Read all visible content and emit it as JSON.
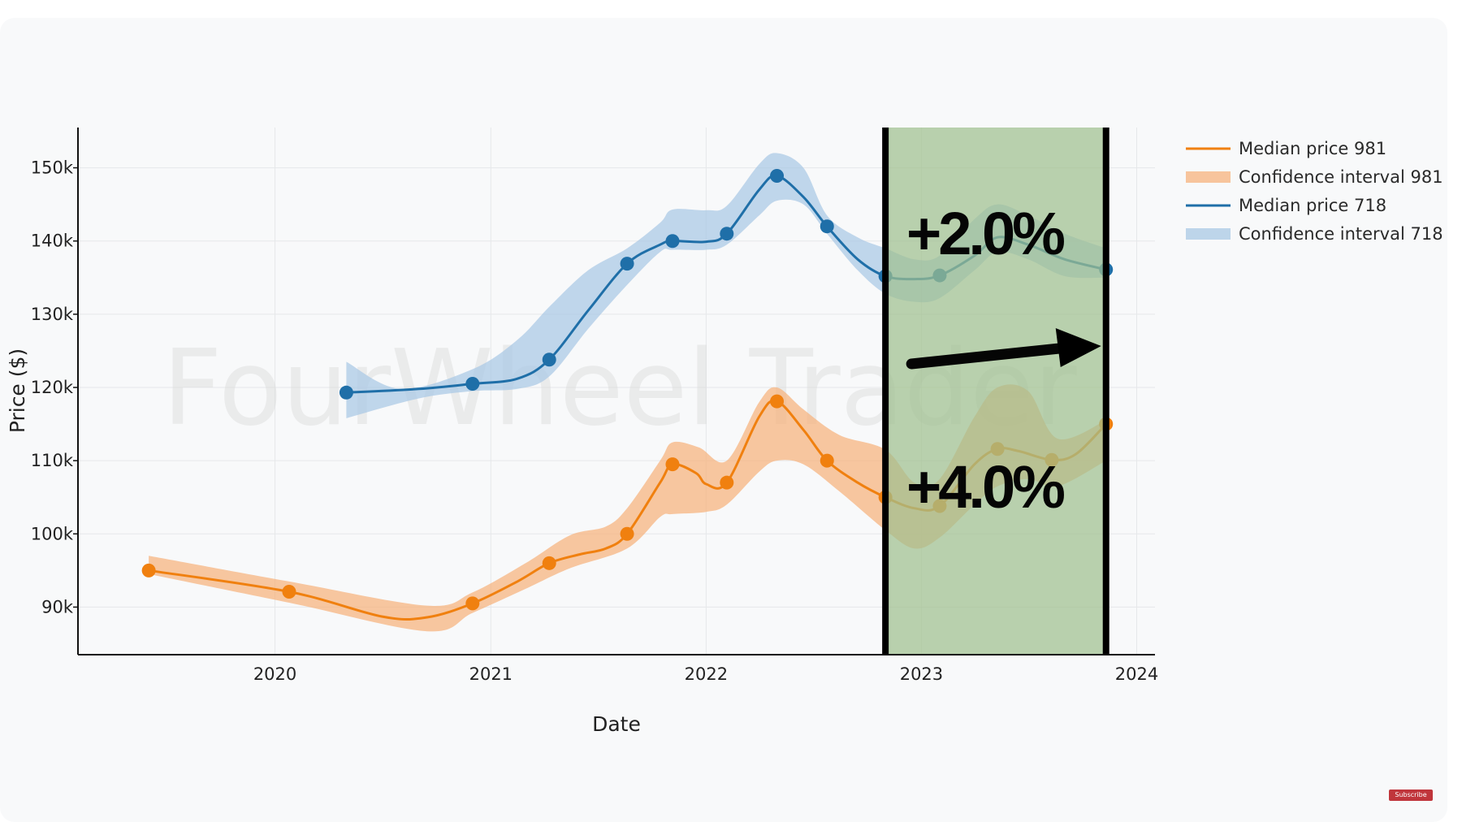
{
  "chart_data": {
    "type": "line",
    "xlabel": "Date",
    "ylabel": "Price ($)",
    "xlim": [
      "2019-02-01",
      "2024-02-01"
    ],
    "ylim": [
      83500,
      155500
    ],
    "x_ticks": [
      {
        "date": "2020-01-01",
        "label": "2020"
      },
      {
        "date": "2021-01-01",
        "label": "2021"
      },
      {
        "date": "2022-01-01",
        "label": "2022"
      },
      {
        "date": "2023-01-01",
        "label": "2023"
      },
      {
        "date": "2024-01-01",
        "label": "2024"
      }
    ],
    "y_ticks": [
      {
        "value": 90000,
        "label": "90k"
      },
      {
        "value": 100000,
        "label": "100k"
      },
      {
        "value": 110000,
        "label": "110k"
      },
      {
        "value": 120000,
        "label": "120k"
      },
      {
        "value": 130000,
        "label": "130k"
      },
      {
        "value": 140000,
        "label": "140k"
      },
      {
        "value": 150000,
        "label": "150k"
      }
    ],
    "grid": true,
    "legend_position": "right",
    "series": [
      {
        "name": "Median price 981",
        "legend_band": "Confidence interval 981",
        "color": "#f0800f",
        "band_color": "#f7b27c",
        "line": [
          {
            "x": "2019-06-01",
            "y": 95000
          },
          {
            "x": "2020-01-25",
            "y": 92100
          },
          {
            "x": "2020-07-01",
            "y": 88700
          },
          {
            "x": "2020-09-15",
            "y": 88600
          },
          {
            "x": "2020-12-01",
            "y": 90500
          },
          {
            "x": "2021-02-15",
            "y": 93500
          },
          {
            "x": "2021-04-10",
            "y": 96000
          },
          {
            "x": "2021-06-01",
            "y": 97200
          },
          {
            "x": "2021-07-15",
            "y": 98000
          },
          {
            "x": "2021-08-20",
            "y": 100000
          },
          {
            "x": "2021-10-15",
            "y": 107000
          },
          {
            "x": "2021-11-05",
            "y": 109500
          },
          {
            "x": "2021-12-15",
            "y": 108300
          },
          {
            "x": "2022-01-01",
            "y": 106800
          },
          {
            "x": "2022-02-05",
            "y": 107000
          },
          {
            "x": "2022-04-01",
            "y": 116000
          },
          {
            "x": "2022-05-01",
            "y": 118100
          },
          {
            "x": "2022-06-15",
            "y": 114200
          },
          {
            "x": "2022-07-25",
            "y": 110000
          },
          {
            "x": "2022-09-15",
            "y": 107000
          },
          {
            "x": "2022-11-01",
            "y": 105000
          },
          {
            "x": "2022-12-20",
            "y": 103500
          },
          {
            "x": "2023-02-01",
            "y": 103800
          },
          {
            "x": "2023-04-01",
            "y": 109500
          },
          {
            "x": "2023-05-10",
            "y": 111600
          },
          {
            "x": "2023-06-15",
            "y": 111300
          },
          {
            "x": "2023-08-10",
            "y": 110100
          },
          {
            "x": "2023-09-20",
            "y": 110900
          },
          {
            "x": "2023-11-10",
            "y": 115000
          }
        ],
        "markers": [
          {
            "x": "2019-06-01",
            "y": 95000
          },
          {
            "x": "2020-01-25",
            "y": 92100
          },
          {
            "x": "2020-12-01",
            "y": 90500
          },
          {
            "x": "2021-04-10",
            "y": 96000
          },
          {
            "x": "2021-08-20",
            "y": 100000
          },
          {
            "x": "2021-11-05",
            "y": 109500
          },
          {
            "x": "2022-02-05",
            "y": 107000
          },
          {
            "x": "2022-05-01",
            "y": 118100
          },
          {
            "x": "2022-07-25",
            "y": 110000
          },
          {
            "x": "2022-11-01",
            "y": 105000
          },
          {
            "x": "2023-02-01",
            "y": 103800
          },
          {
            "x": "2023-05-10",
            "y": 111600
          },
          {
            "x": "2023-08-10",
            "y": 110100
          },
          {
            "x": "2023-11-10",
            "y": 115000
          }
        ],
        "band_upper": [
          {
            "x": "2019-06-01",
            "y": 97000
          },
          {
            "x": "2020-01-25",
            "y": 93500
          },
          {
            "x": "2020-09-15",
            "y": 90200
          },
          {
            "x": "2020-12-01",
            "y": 92000
          },
          {
            "x": "2021-03-01",
            "y": 96000
          },
          {
            "x": "2021-05-15",
            "y": 99800
          },
          {
            "x": "2021-07-15",
            "y": 101000
          },
          {
            "x": "2021-08-20",
            "y": 103500
          },
          {
            "x": "2021-10-15",
            "y": 110000
          },
          {
            "x": "2021-11-05",
            "y": 112500
          },
          {
            "x": "2021-12-20",
            "y": 111800
          },
          {
            "x": "2022-02-05",
            "y": 110000
          },
          {
            "x": "2022-04-01",
            "y": 118000
          },
          {
            "x": "2022-05-01",
            "y": 120000
          },
          {
            "x": "2022-06-15",
            "y": 117000
          },
          {
            "x": "2022-08-15",
            "y": 113500
          },
          {
            "x": "2022-11-01",
            "y": 111500
          },
          {
            "x": "2022-12-20",
            "y": 107000
          },
          {
            "x": "2023-02-01",
            "y": 107500
          },
          {
            "x": "2023-04-01",
            "y": 116000
          },
          {
            "x": "2023-05-10",
            "y": 120000
          },
          {
            "x": "2023-07-01",
            "y": 119500
          },
          {
            "x": "2023-08-20",
            "y": 113000
          },
          {
            "x": "2023-11-10",
            "y": 115500
          }
        ],
        "band_lower": [
          {
            "x": "2019-06-01",
            "y": 94500
          },
          {
            "x": "2020-01-25",
            "y": 90600
          },
          {
            "x": "2020-09-15",
            "y": 86700
          },
          {
            "x": "2020-12-01",
            "y": 89200
          },
          {
            "x": "2021-03-01",
            "y": 92500
          },
          {
            "x": "2021-05-15",
            "y": 95300
          },
          {
            "x": "2021-08-20",
            "y": 98000
          },
          {
            "x": "2021-10-15",
            "y": 102300
          },
          {
            "x": "2021-11-05",
            "y": 102700
          },
          {
            "x": "2022-01-01",
            "y": 103000
          },
          {
            "x": "2022-02-05",
            "y": 104000
          },
          {
            "x": "2022-04-01",
            "y": 108500
          },
          {
            "x": "2022-05-01",
            "y": 110000
          },
          {
            "x": "2022-06-15",
            "y": 109500
          },
          {
            "x": "2022-08-15",
            "y": 105800
          },
          {
            "x": "2022-11-01",
            "y": 100500
          },
          {
            "x": "2022-12-20",
            "y": 98000
          },
          {
            "x": "2023-02-01",
            "y": 99500
          },
          {
            "x": "2023-04-01",
            "y": 104000
          },
          {
            "x": "2023-05-10",
            "y": 106500
          },
          {
            "x": "2023-07-01",
            "y": 107500
          },
          {
            "x": "2023-08-20",
            "y": 106500
          },
          {
            "x": "2023-11-10",
            "y": 110000
          }
        ]
      },
      {
        "name": "Median price 718",
        "legend_band": "Confidence interval 718",
        "color": "#1f6fa8",
        "band_color": "#a9c8e4",
        "line": [
          {
            "x": "2020-05-01",
            "y": 119300
          },
          {
            "x": "2020-09-01",
            "y": 119800
          },
          {
            "x": "2020-12-01",
            "y": 120500
          },
          {
            "x": "2021-02-15",
            "y": 121200
          },
          {
            "x": "2021-04-10",
            "y": 123800
          },
          {
            "x": "2021-06-15",
            "y": 130500
          },
          {
            "x": "2021-08-20",
            "y": 136900
          },
          {
            "x": "2021-10-15",
            "y": 139500
          },
          {
            "x": "2021-11-05",
            "y": 140000
          },
          {
            "x": "2022-01-01",
            "y": 139900
          },
          {
            "x": "2022-02-05",
            "y": 141000
          },
          {
            "x": "2022-04-01",
            "y": 147000
          },
          {
            "x": "2022-05-01",
            "y": 148900
          },
          {
            "x": "2022-06-15",
            "y": 146000
          },
          {
            "x": "2022-07-25",
            "y": 142000
          },
          {
            "x": "2022-09-15",
            "y": 137500
          },
          {
            "x": "2022-11-01",
            "y": 135200
          },
          {
            "x": "2022-12-20",
            "y": 134800
          },
          {
            "x": "2023-02-01",
            "y": 135300
          },
          {
            "x": "2023-04-01",
            "y": 138000
          },
          {
            "x": "2023-05-10",
            "y": 140500
          },
          {
            "x": "2023-07-01",
            "y": 139500
          },
          {
            "x": "2023-09-01",
            "y": 137500
          },
          {
            "x": "2023-11-10",
            "y": 136100
          }
        ],
        "markers": [
          {
            "x": "2020-05-01",
            "y": 119300
          },
          {
            "x": "2020-12-01",
            "y": 120500
          },
          {
            "x": "2021-04-10",
            "y": 123800
          },
          {
            "x": "2021-08-20",
            "y": 136900
          },
          {
            "x": "2021-11-05",
            "y": 140000
          },
          {
            "x": "2022-02-05",
            "y": 141000
          },
          {
            "x": "2022-05-01",
            "y": 148900
          },
          {
            "x": "2022-07-25",
            "y": 142000
          },
          {
            "x": "2022-11-01",
            "y": 135200
          },
          {
            "x": "2023-02-01",
            "y": 135300
          },
          {
            "x": "2023-11-10",
            "y": 136100
          }
        ],
        "band_upper": [
          {
            "x": "2020-05-01",
            "y": 123500
          },
          {
            "x": "2020-08-01",
            "y": 119800
          },
          {
            "x": "2020-12-01",
            "y": 122500
          },
          {
            "x": "2021-02-15",
            "y": 126500
          },
          {
            "x": "2021-04-10",
            "y": 131000
          },
          {
            "x": "2021-06-15",
            "y": 136000
          },
          {
            "x": "2021-08-20",
            "y": 139000
          },
          {
            "x": "2021-10-15",
            "y": 142500
          },
          {
            "x": "2021-11-05",
            "y": 144300
          },
          {
            "x": "2022-01-01",
            "y": 144200
          },
          {
            "x": "2022-02-05",
            "y": 144800
          },
          {
            "x": "2022-04-01",
            "y": 150500
          },
          {
            "x": "2022-05-01",
            "y": 152000
          },
          {
            "x": "2022-06-15",
            "y": 150000
          },
          {
            "x": "2022-07-25",
            "y": 143500
          },
          {
            "x": "2022-09-15",
            "y": 140500
          },
          {
            "x": "2022-11-01",
            "y": 139000
          },
          {
            "x": "2022-12-20",
            "y": 137500
          },
          {
            "x": "2023-02-01",
            "y": 138000
          },
          {
            "x": "2023-04-01",
            "y": 143000
          },
          {
            "x": "2023-05-10",
            "y": 145000
          },
          {
            "x": "2023-07-01",
            "y": 143500
          },
          {
            "x": "2023-09-01",
            "y": 141000
          },
          {
            "x": "2023-11-10",
            "y": 139000
          }
        ],
        "band_lower": [
          {
            "x": "2020-05-01",
            "y": 115800
          },
          {
            "x": "2020-09-01",
            "y": 118500
          },
          {
            "x": "2020-12-01",
            "y": 119500
          },
          {
            "x": "2021-02-15",
            "y": 119800
          },
          {
            "x": "2021-04-10",
            "y": 121500
          },
          {
            "x": "2021-06-15",
            "y": 128000
          },
          {
            "x": "2021-08-20",
            "y": 134000
          },
          {
            "x": "2021-10-15",
            "y": 138500
          },
          {
            "x": "2021-11-05",
            "y": 138800
          },
          {
            "x": "2022-01-01",
            "y": 138800
          },
          {
            "x": "2022-02-05",
            "y": 139500
          },
          {
            "x": "2022-04-01",
            "y": 143500
          },
          {
            "x": "2022-05-01",
            "y": 145500
          },
          {
            "x": "2022-06-15",
            "y": 145000
          },
          {
            "x": "2022-07-25",
            "y": 141000
          },
          {
            "x": "2022-09-15",
            "y": 136000
          },
          {
            "x": "2022-11-01",
            "y": 132800
          },
          {
            "x": "2022-12-20",
            "y": 131700
          },
          {
            "x": "2023-02-01",
            "y": 132200
          },
          {
            "x": "2023-04-01",
            "y": 136000
          },
          {
            "x": "2023-05-10",
            "y": 138500
          },
          {
            "x": "2023-07-01",
            "y": 137500
          },
          {
            "x": "2023-09-01",
            "y": 135200
          },
          {
            "x": "2023-11-10",
            "y": 135000
          }
        ]
      }
    ],
    "highlight": {
      "x_start": "2022-11-01",
      "x_end": "2023-11-10",
      "fill_color": "#9fbf8f",
      "annotations": [
        {
          "text": "+2.0%"
        },
        {
          "text": "+4.0%"
        }
      ]
    }
  },
  "watermark": "FourWheel Trader",
  "badge": "Subscribe"
}
